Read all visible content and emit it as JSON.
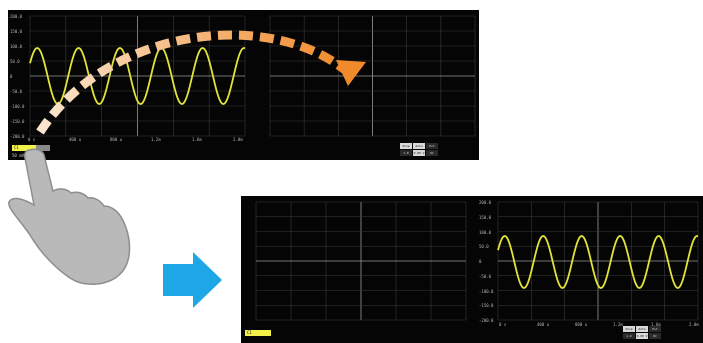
{
  "colors": {
    "waveform": "#e3e33a",
    "grid": "#3a3a3a",
    "center_line": "#9a9a9a",
    "swipe_arrow": "#f08a2a",
    "direction_arrow": "#1ea7e6",
    "hand": "#b9b9b9"
  },
  "scope_top": {
    "y_ticks": [
      "200.0",
      "150.0",
      "100.0",
      "50.0",
      "0",
      "-50.0",
      "-100.0",
      "-150.0",
      "-200.0"
    ],
    "x_ticks": [
      "0 s",
      "400 u",
      "800 u",
      "1.2m",
      "1.6m",
      "2.0m"
    ],
    "channel_badge": "C1",
    "channel_badge2": "",
    "channel_info": [
      "50 mV",
      "500 us"
    ],
    "status": [
      "Stop",
      "Auto",
      "Ext",
      "1.0 MHz",
      "0.00 V",
      "DC"
    ]
  },
  "scope_bottom": {
    "y_ticks": [
      "200.0",
      "150.0",
      "100.0",
      "50.0",
      "0",
      "-50.0",
      "-100.0",
      "-150.0",
      "-200.0"
    ],
    "x_ticks": [
      "0 s",
      "400 u",
      "800 u",
      "1.2m",
      "1.6m",
      "2.0m"
    ],
    "channel_badge": "C1",
    "channel_info": [
      "50 mV",
      "500 us"
    ],
    "status": [
      "Stop",
      "Auto",
      "Ext",
      "1.0 MHz",
      "0.00 V",
      "DC"
    ]
  },
  "gesture": {
    "hand_icon": "pointing-hand-icon",
    "swipe_icon": "curved-dashed-arrow-icon",
    "result_icon": "right-arrow-icon"
  }
}
